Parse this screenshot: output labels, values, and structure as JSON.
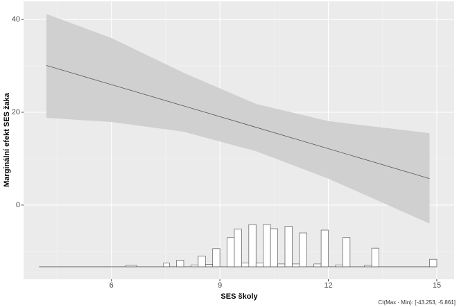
{
  "chart_data": {
    "type": "marginal-effect",
    "x_label": "SES školy",
    "y_label": "Marginální efekt SES žaka",
    "caption": "CI(Max - Min): [-43.253, -5.861]",
    "x": [
      4.2,
      6,
      8,
      10,
      12,
      14.8
    ],
    "values": [
      30.1,
      25.96,
      21.36,
      16.76,
      12.16,
      5.7
    ],
    "upper": [
      41.2,
      36.0,
      28.5,
      21.8,
      18.1,
      15.5
    ],
    "lower": [
      18.8,
      17.9,
      15.8,
      11.6,
      5.7,
      -4.0
    ],
    "line_color": "#595959",
    "band_color": "#d0d0d0",
    "xlim": [
      3.57,
      15.48
    ],
    "ylim": [
      -16.0,
      43.9
    ],
    "xticks": [
      6,
      9,
      12,
      15
    ],
    "yticks": [
      0,
      20,
      40
    ],
    "xminor": [
      4.5,
      7.5,
      10.5,
      13.5
    ],
    "yminor": [
      -10,
      10,
      30
    ],
    "grid": true,
    "histogram": {
      "baseline": -13.3,
      "x_range": [
        4.0,
        15.0
      ],
      "fill": "#ffffff",
      "stroke": "#595959",
      "bars": [
        {
          "x0": 6.4,
          "x1": 6.7,
          "top": -13.0
        },
        {
          "x0": 7.44,
          "x1": 7.61,
          "top": -12.5
        },
        {
          "x0": 7.8,
          "x1": 8.0,
          "top": -11.9
        },
        {
          "x0": 8.2,
          "x1": 8.4,
          "top": -12.9
        },
        {
          "x0": 8.4,
          "x1": 8.6,
          "top": -11.0
        },
        {
          "x0": 8.6,
          "x1": 8.8,
          "top": -12.8
        },
        {
          "x0": 8.8,
          "x1": 9.0,
          "top": -9.4
        },
        {
          "x0": 9.2,
          "x1": 9.4,
          "top": -7.0
        },
        {
          "x0": 9.4,
          "x1": 9.6,
          "top": -5.2
        },
        {
          "x0": 9.6,
          "x1": 9.8,
          "top": -12.5
        },
        {
          "x0": 9.8,
          "x1": 10.0,
          "top": -4.2
        },
        {
          "x0": 10.0,
          "x1": 10.2,
          "top": -12.5
        },
        {
          "x0": 10.2,
          "x1": 10.4,
          "top": -4.2
        },
        {
          "x0": 10.4,
          "x1": 10.6,
          "top": -5.1
        },
        {
          "x0": 10.6,
          "x1": 10.8,
          "top": -12.7
        },
        {
          "x0": 10.8,
          "x1": 11.0,
          "top": -4.6
        },
        {
          "x0": 11.0,
          "x1": 11.2,
          "top": -12.7
        },
        {
          "x0": 11.2,
          "x1": 11.4,
          "top": -6.0
        },
        {
          "x0": 11.6,
          "x1": 11.8,
          "top": -12.7
        },
        {
          "x0": 11.8,
          "x1": 12.0,
          "top": -5.4
        },
        {
          "x0": 12.2,
          "x1": 12.4,
          "top": -12.9
        },
        {
          "x0": 12.4,
          "x1": 12.6,
          "top": -7.0
        },
        {
          "x0": 13.0,
          "x1": 13.2,
          "top": -13.0
        },
        {
          "x0": 13.2,
          "x1": 13.4,
          "top": -9.3
        },
        {
          "x0": 14.8,
          "x1": 15.0,
          "top": -11.7
        }
      ]
    }
  }
}
